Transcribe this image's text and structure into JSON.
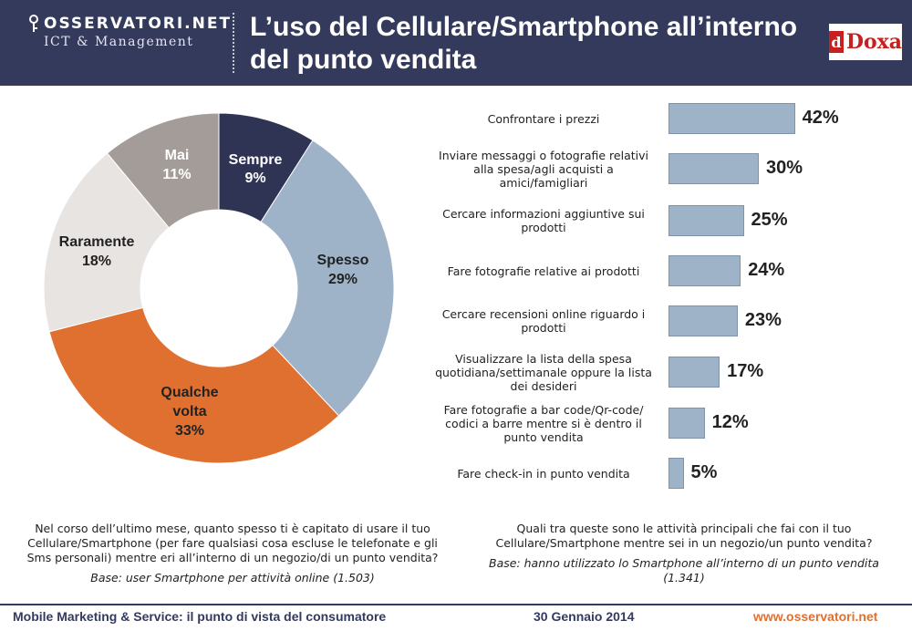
{
  "header": {
    "logo_main": "OSSERVATORI.NET",
    "logo_sub": "ICT & Management",
    "title_line1": "L’uso del Cellulare/Smartphone all’interno",
    "title_line2": "del punto vendita",
    "partner": "Doxa",
    "partner_mark": "d"
  },
  "chart_data": [
    {
      "type": "pie",
      "style": "donut",
      "categories": [
        "Sempre",
        "Spesso",
        "Qualche volta",
        "Raramente",
        "Mai"
      ],
      "values": [
        9,
        29,
        33,
        18,
        11
      ],
      "value_labels": [
        "9%",
        "29%",
        "33%",
        "18%",
        "11%"
      ],
      "colors": [
        "#2f3354",
        "#9fb3c8",
        "#e07030",
        "#e8e4e2",
        "#a39c98"
      ],
      "label_colors": [
        "#ffffff",
        "#222222",
        "#222222",
        "#222222",
        "#ffffff"
      ],
      "question": "Nel corso dell’ultimo mese, quanto spesso ti è capitato di usare il tuo Cellulare/Smartphone (per fare qualsiasi cosa escluse le telefonate e gli Sms personali) mentre eri all’interno di un negozio/di un punto vendita?",
      "base": "Base: user Smartphone per attività online (1.503)"
    },
    {
      "type": "bar",
      "orientation": "horizontal",
      "categories": [
        "Confrontare i prezzi",
        "Inviare messaggi o fotografie relativi alla spesa/agli acquisti a amici/famigliari",
        "Cercare informazioni aggiuntive sui prodotti",
        "Fare fotografie relative ai prodotti",
        "Cercare recensioni online riguardo i prodotti",
        "Visualizzare la lista della spesa quotidiana/settimanale oppure la lista dei desideri",
        "Fare fotografie a bar code/Qr-code/ codici a barre mentre si è dentro il punto vendita",
        "Fare check-in in punto vendita"
      ],
      "values": [
        42,
        30,
        25,
        24,
        23,
        17,
        12,
        5
      ],
      "value_labels": [
        "42%",
        "30%",
        "25%",
        "24%",
        "23%",
        "17%",
        "12%",
        "5%"
      ],
      "color": "#9fb3c8",
      "question": "Quali tra queste sono le attività principali che fai con il tuo Cellulare/Smartphone mentre sei in un negozio/un punto vendita?",
      "base": "Base: hanno utilizzato lo Smartphone all’interno di un punto vendita (1.341)"
    }
  ],
  "pie_text": {
    "sempre": "Sempre",
    "sempre_v": "9%",
    "spesso": "Spesso",
    "spesso_v": "29%",
    "qualche1": "Qualche",
    "qualche2": "volta",
    "qualche_v": "33%",
    "raramente": "Raramente",
    "raramente_v": "18%",
    "mai": "Mai",
    "mai_v": "11%"
  },
  "bars": [
    {
      "label": "Confrontare i prezzi",
      "value": "42%"
    },
    {
      "label": "Inviare messaggi o fotografie relativi alla spesa/agli acquisti a amici/famigliari",
      "value": "30%"
    },
    {
      "label": "Cercare informazioni aggiuntive sui prodotti",
      "value": "25%"
    },
    {
      "label": "Fare fotografie relative ai prodotti",
      "value": "24%"
    },
    {
      "label": "Cercare recensioni online riguardo i prodotti",
      "value": "23%"
    },
    {
      "label": "Visualizzare la lista della spesa quotidiana/settimanale oppure la lista dei desideri",
      "value": "17%"
    },
    {
      "label": "Fare fotografie a bar code/Qr-code/ codici a barre mentre si è dentro il punto vendita",
      "value": "12%"
    },
    {
      "label": "Fare check-in in punto vendita",
      "value": "5%"
    }
  ],
  "footer": {
    "left": "Mobile Marketing & Service: il punto di vista del consumatore",
    "center": "30 Gennaio 2014",
    "right": "www.osservatori.net"
  },
  "colors": {
    "header_bg": "#343a5c",
    "footer_right": "#e07030"
  }
}
